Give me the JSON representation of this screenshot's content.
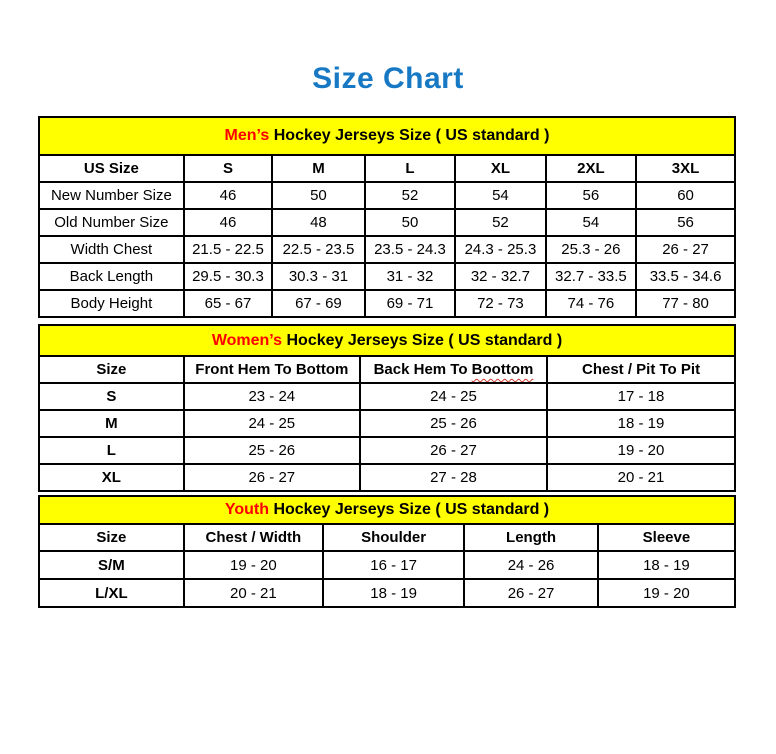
{
  "title": "Size Chart",
  "colors": {
    "title_blue": "#1778C4",
    "band_yellow": "#FFFF00",
    "accent_red": "#FF0000",
    "grid_black": "#000000",
    "squiggle_red": "#D23A2E"
  },
  "sections": [
    {
      "id": "mens",
      "band_highlight": "Men’s",
      "band_text": "Hockey Jerseys Size ( US standard )",
      "columns": [
        {
          "label": "US Size"
        },
        {
          "label": "S"
        },
        {
          "label": "M"
        },
        {
          "label": "L"
        },
        {
          "label": "XL"
        },
        {
          "label": "2XL"
        },
        {
          "label": "3XL"
        }
      ],
      "rows": [
        {
          "label": "New Number Size",
          "values": [
            "46",
            "50",
            "52",
            "54",
            "56",
            "60"
          ]
        },
        {
          "label": "Old Number Size",
          "values": [
            "46",
            "48",
            "50",
            "52",
            "54",
            "56"
          ]
        },
        {
          "label": "Width Chest",
          "values": [
            "21.5 - 22.5",
            "22.5 - 23.5",
            "23.5 - 24.3",
            "24.3 - 25.3",
            "25.3 - 26",
            "26 - 27"
          ]
        },
        {
          "label": "Back Length",
          "values": [
            "29.5 - 30.3",
            "30.3 - 31",
            "31 - 32",
            "32 - 32.7",
            "32.7 - 33.5",
            "33.5 - 34.6"
          ]
        },
        {
          "label": "Body Height",
          "values": [
            "65 - 67",
            "67 - 69",
            "69 - 71",
            "72 - 73",
            "74 - 76",
            "77 - 80"
          ]
        }
      ]
    },
    {
      "id": "womens",
      "band_highlight": "Women’s",
      "band_text": "Hockey Jerseys Size ( US standard )",
      "columns": [
        {
          "label": "Size"
        },
        {
          "label": "Front Hem To Bottom"
        },
        {
          "label": "Back Hem To ",
          "wavy": "Boottom"
        },
        {
          "label": "Chest / Pit To Pit"
        }
      ],
      "rows": [
        {
          "label": "S",
          "values": [
            "23 - 24",
            "24 - 25",
            "17 - 18"
          ]
        },
        {
          "label": "M",
          "values": [
            "24 - 25",
            "25 - 26",
            "18 - 19"
          ]
        },
        {
          "label": "L",
          "values": [
            "25 - 26",
            "26 - 27",
            "19 - 20"
          ]
        },
        {
          "label": "XL",
          "values": [
            "26 - 27",
            "27 - 28",
            "20 - 21"
          ]
        }
      ]
    },
    {
      "id": "youth",
      "band_highlight": "Youth",
      "band_text": "Hockey Jerseys Size ( US standard )",
      "columns": [
        {
          "label": "Size"
        },
        {
          "label": "Chest / Width"
        },
        {
          "label": "Shoulder"
        },
        {
          "label": "Length"
        },
        {
          "label": "Sleeve"
        }
      ],
      "rows": [
        {
          "label": "S/M",
          "values": [
            "19 - 20",
            "16 - 17",
            "24 - 26",
            "18 - 19"
          ]
        },
        {
          "label": "L/XL",
          "values": [
            "20 - 21",
            "18 - 19",
            "26 - 27",
            "19 - 20"
          ]
        }
      ]
    }
  ]
}
